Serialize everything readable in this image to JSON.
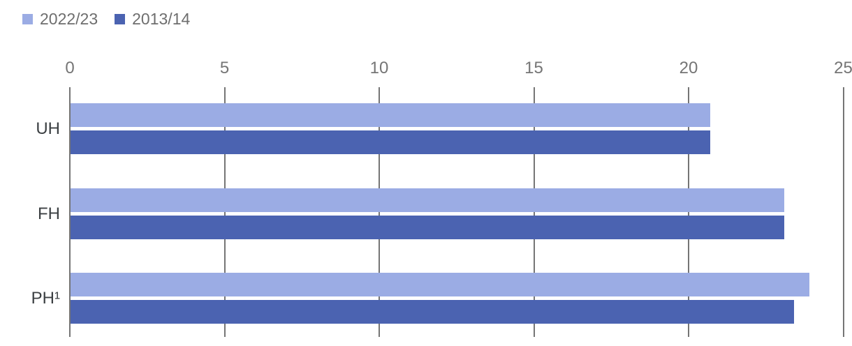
{
  "legend": {
    "items": [
      {
        "label": "2022/23",
        "color": "#9bace4"
      },
      {
        "label": "2013/14",
        "color": "#4b63b1"
      }
    ]
  },
  "chart_data": {
    "type": "bar",
    "orientation": "horizontal",
    "title": "",
    "categories": [
      "UH",
      "FH",
      "PH¹"
    ],
    "series": [
      {
        "name": "2022/23",
        "color": "#9bace4",
        "values": [
          20.7,
          23.1,
          23.9
        ]
      },
      {
        "name": "2013/14",
        "color": "#4b63b1",
        "values": [
          20.7,
          23.1,
          23.4
        ]
      }
    ],
    "xlim": [
      0,
      25
    ],
    "xticks": [
      0,
      5,
      10,
      15,
      20,
      25
    ],
    "grid": true,
    "gridline_color": "#757575",
    "tick_label_color": "#757575",
    "category_label_color": "#3c4043",
    "legend_position": "top-left"
  }
}
